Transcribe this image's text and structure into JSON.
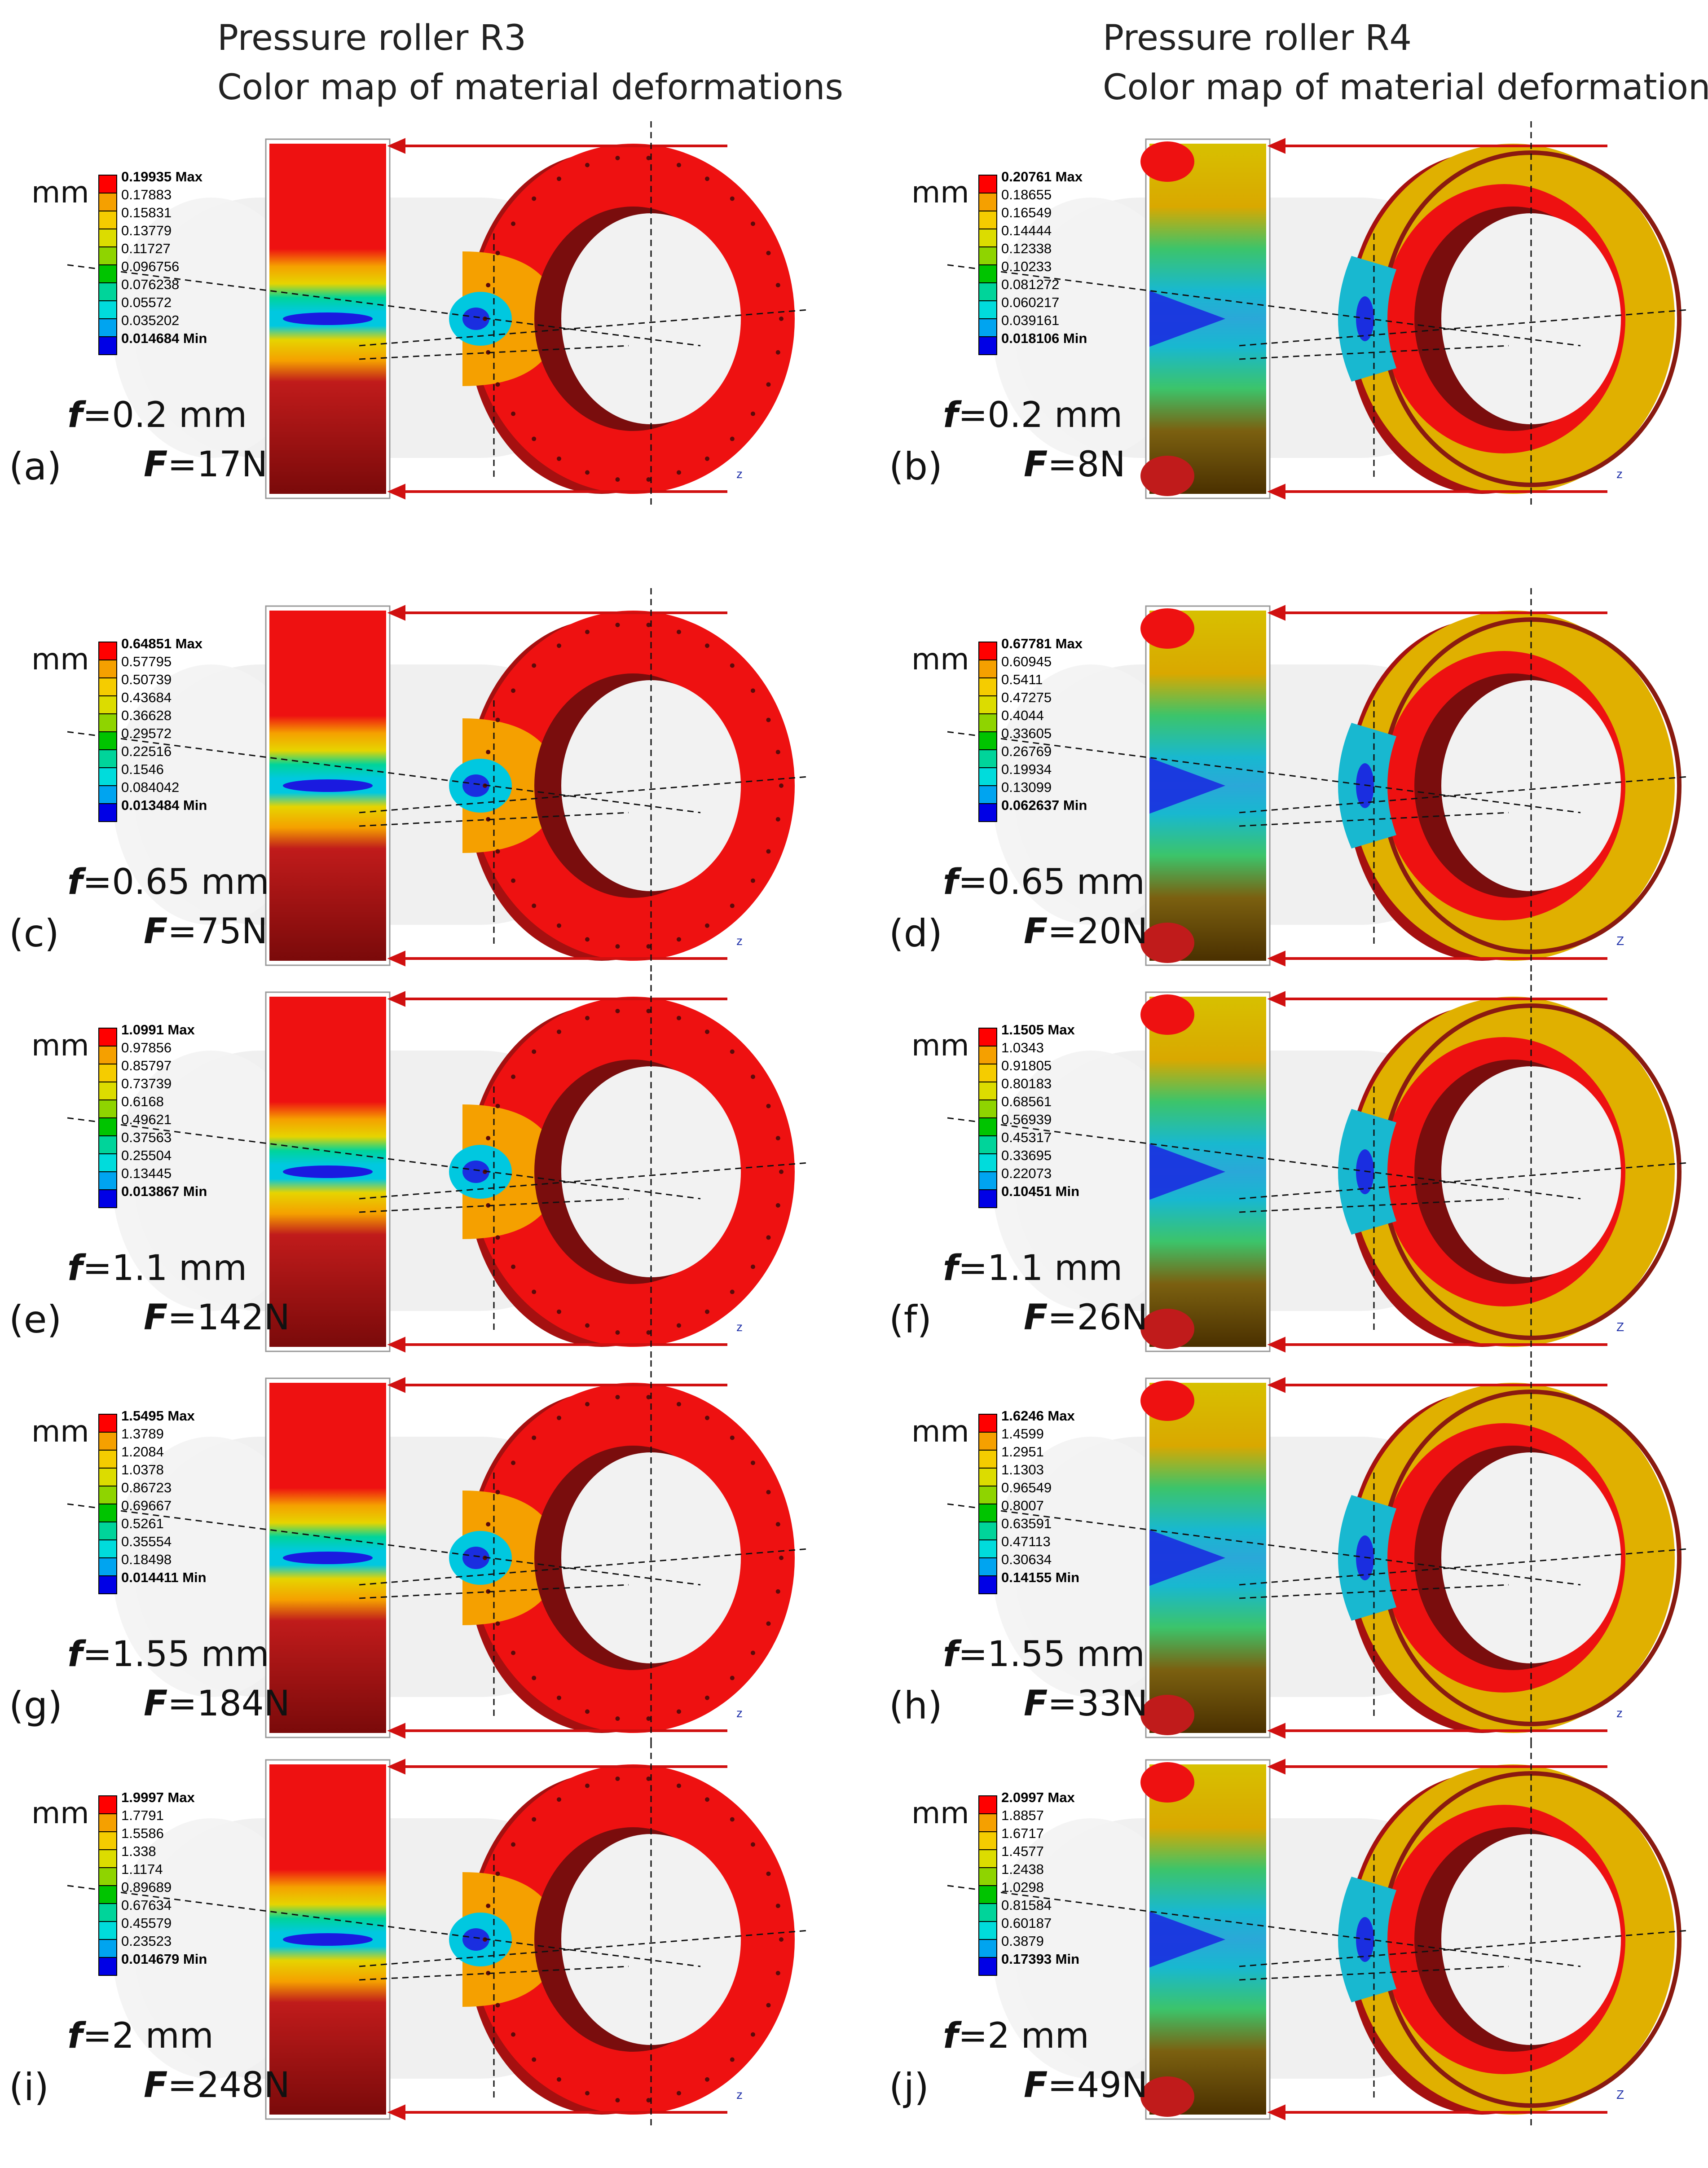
{
  "headers": {
    "r3_title": "Pressure roller R3",
    "r3_sub": "Color map of material deformations",
    "r4_title": "Pressure roller R4",
    "r4_sub": "Color map of material deformations"
  },
  "unit": "mm",
  "scale_colors": [
    "#ff0000",
    "#f5a000",
    "#f5cc00",
    "#dcdc00",
    "#8fd400",
    "#00c400",
    "#00d49a",
    "#00dcdc",
    "#00a4f0",
    "#0000e6"
  ],
  "panels": [
    {
      "letter": "(a)",
      "f_label": "f",
      "f_value": "=0.2 mm",
      "F_label": "F",
      "F_value": "=17N",
      "roller": "R3",
      "zlabel": "z",
      "scale": [
        "0.19935 Max",
        "0.17883",
        "0.15831",
        "0.13779",
        "0.11727",
        "0.096756",
        "0.076238",
        "0.05572",
        "0.035202",
        "0.014684 Min"
      ]
    },
    {
      "letter": "(b)",
      "f_label": "f",
      "f_value": "=0.2 mm",
      "F_label": "F",
      "F_value": "=8N",
      "roller": "R4",
      "zlabel": "z",
      "scale": [
        "0.20761 Max",
        "0.18655",
        "0.16549",
        "0.14444",
        "0.12338",
        "0.10233",
        "0.081272",
        "0.060217",
        "0.039161",
        "0.018106 Min"
      ]
    },
    {
      "letter": "(c)",
      "f_label": "f",
      "f_value": "=0.65 mm",
      "F_label": "F",
      "F_value": "=75N",
      "roller": "R3",
      "zlabel": "z",
      "scale": [
        "0.64851 Max",
        "0.57795",
        "0.50739",
        "0.43684",
        "0.36628",
        "0.29572",
        "0.22516",
        "0.1546",
        "0.084042",
        "0.013484 Min"
      ]
    },
    {
      "letter": "(d)",
      "f_label": "f",
      "f_value": "=0.65 mm",
      "F_label": "F",
      "F_value": "=20N",
      "roller": "R4",
      "zlabel": "Z",
      "scale": [
        "0.67781 Max",
        "0.60945",
        "0.5411",
        "0.47275",
        "0.4044",
        "0.33605",
        "0.26769",
        "0.19934",
        "0.13099",
        "0.062637 Min"
      ]
    },
    {
      "letter": "(e)",
      "f_label": "f",
      "f_value": "=1.1 mm",
      "F_label": "F",
      "F_value": "=142N",
      "roller": "R3",
      "zlabel": "z",
      "scale": [
        "1.0991 Max",
        "0.97856",
        "0.85797",
        "0.73739",
        "0.6168",
        "0.49621",
        "0.37563",
        "0.25504",
        "0.13445",
        "0.013867 Min"
      ]
    },
    {
      "letter": "(f)",
      "f_label": "f",
      "f_value": "=1.1 mm",
      "F_label": "F",
      "F_value": "=26N",
      "roller": "R4",
      "zlabel": "Z",
      "scale": [
        "1.1505 Max",
        "1.0343",
        "0.91805",
        "0.80183",
        "0.68561",
        "0.56939",
        "0.45317",
        "0.33695",
        "0.22073",
        "0.10451 Min"
      ]
    },
    {
      "letter": "(g)",
      "f_label": "f",
      "f_value": "=1.55 mm",
      "F_label": "F",
      "F_value": "=184N",
      "roller": "R3",
      "zlabel": "z",
      "scale": [
        "1.5495 Max",
        "1.3789",
        "1.2084",
        "1.0378",
        "0.86723",
        "0.69667",
        "0.5261",
        "0.35554",
        "0.18498",
        "0.014411 Min"
      ]
    },
    {
      "letter": "(h)",
      "f_label": "f",
      "f_value": "=1.55 mm",
      "F_label": "F",
      "F_value": "=33N",
      "roller": "R4",
      "zlabel": "z",
      "scale": [
        "1.6246 Max",
        "1.4599",
        "1.2951",
        "1.1303",
        "0.96549",
        "0.8007",
        "0.63591",
        "0.47113",
        "0.30634",
        "0.14155 Min"
      ]
    },
    {
      "letter": "(i)",
      "f_label": "f",
      "f_value": "=2 mm",
      "F_label": "F",
      "F_value": "=248N",
      "roller": "R3",
      "zlabel": "z",
      "scale": [
        "1.9997 Max",
        "1.7791",
        "1.5586",
        "1.338",
        "1.1174",
        "0.89689",
        "0.67634",
        "0.45579",
        "0.23523",
        "0.014679 Min"
      ]
    },
    {
      "letter": "(j)",
      "f_label": "f",
      "f_value": "=2 mm",
      "F_label": "F",
      "F_value": "=49N",
      "roller": "R4",
      "zlabel": "Z",
      "scale": [
        "2.0997 Max",
        "1.8857",
        "1.6717",
        "1.4577",
        "1.2438",
        "1.0298",
        "0.81584",
        "0.60187",
        "0.3879",
        "0.17393 Min"
      ]
    }
  ]
}
